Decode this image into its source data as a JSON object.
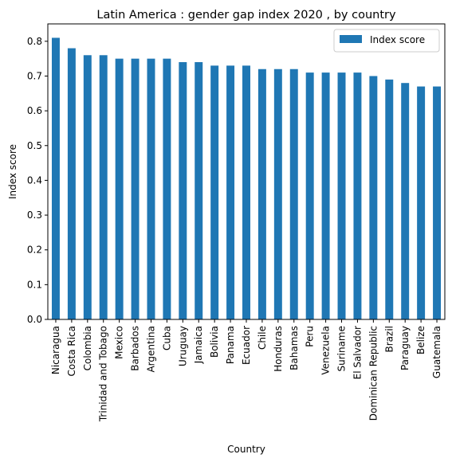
{
  "chart_data": {
    "type": "bar",
    "title": "Latin America : gender gap index 2020 , by country",
    "xlabel": "Country",
    "ylabel": "Index score",
    "categories": [
      "Nicaragua",
      "Costa Rica",
      "Colombia",
      "Trinidad and Tobago",
      "Mexico",
      "Barbados",
      "Argentina",
      "Cuba",
      "Uruguay",
      "Jamaica",
      "Bolivia",
      "Panama",
      "Ecuador",
      "Chile",
      "Honduras",
      "Bahamas",
      "Peru",
      "Venezuela",
      "Suriname",
      "El Salvador",
      "Dominican Republic",
      "Brazil",
      "Paraguay",
      "Belize",
      "Guatemala"
    ],
    "series": [
      {
        "name": "Index score",
        "color": "#1f77b4",
        "values": [
          0.81,
          0.78,
          0.76,
          0.76,
          0.75,
          0.75,
          0.75,
          0.75,
          0.74,
          0.74,
          0.73,
          0.73,
          0.73,
          0.72,
          0.72,
          0.72,
          0.71,
          0.71,
          0.71,
          0.71,
          0.7,
          0.69,
          0.68,
          0.67,
          0.67
        ]
      }
    ],
    "ylim": [
      0,
      0.85
    ],
    "yticks": [
      "0.0",
      "0.1",
      "0.2",
      "0.3",
      "0.4",
      "0.5",
      "0.6",
      "0.7",
      "0.8"
    ],
    "grid": false,
    "legend_position": "top-right"
  }
}
